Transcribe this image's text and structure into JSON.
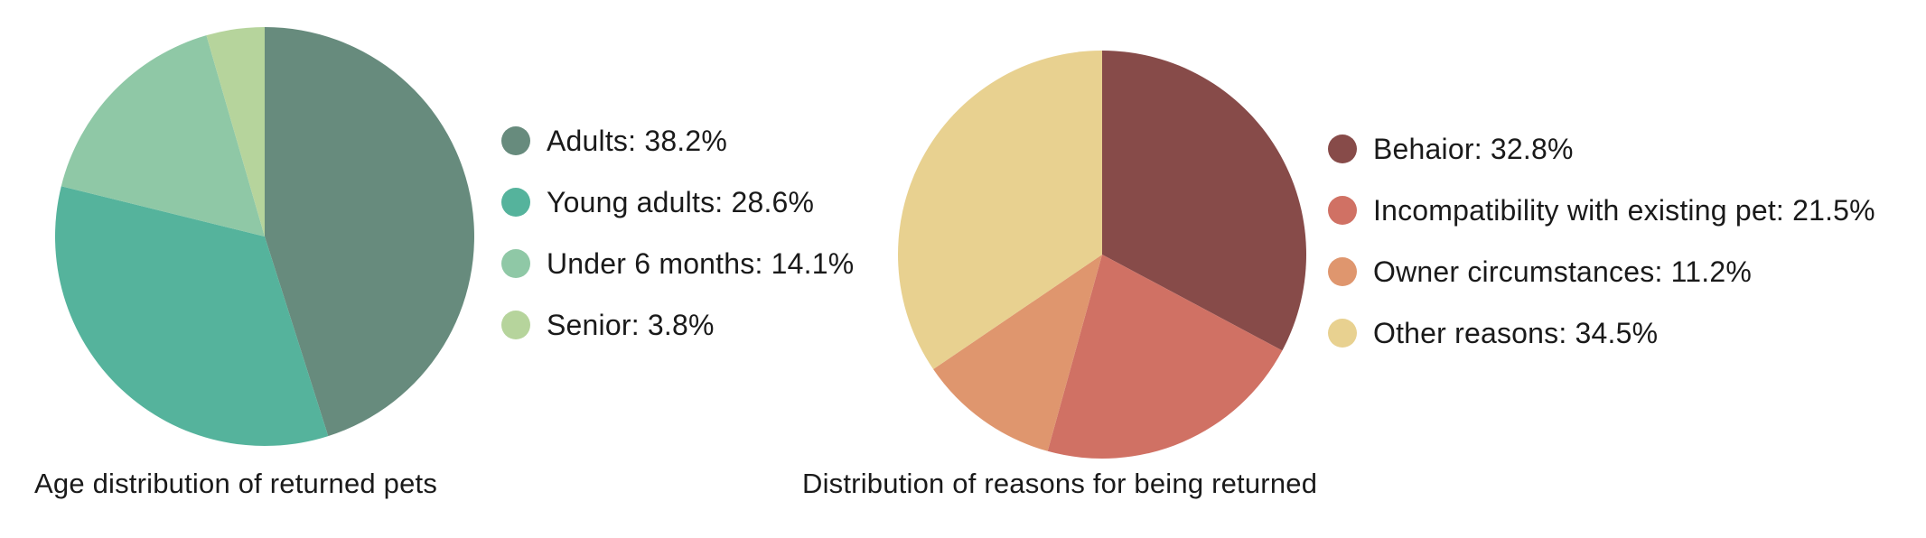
{
  "chart_data": [
    {
      "type": "pie",
      "title": "Age distribution of returned pets",
      "slices": [
        {
          "label": "Adults",
          "value": 38.2,
          "color": "#678b7d"
        },
        {
          "label": "Young adults",
          "value": 28.6,
          "color": "#55b39c"
        },
        {
          "label": "Under 6 months",
          "value": 14.1,
          "color": "#8fc8a6"
        },
        {
          "label": "Senior",
          "value": 3.8,
          "color": "#b6d49c"
        }
      ],
      "legend": [
        {
          "text": "Adults: 38.2%",
          "color": "#678b7d"
        },
        {
          "text": "Young adults: 28.6%",
          "color": "#55b39c"
        },
        {
          "text": "Under 6 months: 14.1%",
          "color": "#8fc8a6"
        },
        {
          "text": "Senior: 3.8%",
          "color": "#b6d49c"
        }
      ],
      "legend_placement": "right"
    },
    {
      "type": "pie",
      "title": "Distribution of reasons for being returned",
      "slices": [
        {
          "label": "Behaior",
          "value": 32.8,
          "color": "#874b49"
        },
        {
          "label": "Incompatibility with existing pet",
          "value": 21.5,
          "color": "#d07164"
        },
        {
          "label": "Owner circumstances",
          "value": 11.2,
          "color": "#df966e"
        },
        {
          "label": "Other reasons",
          "value": 34.5,
          "color": "#e8d190"
        }
      ],
      "legend": [
        {
          "text": "Behaior: 32.8%",
          "color": "#874b49"
        },
        {
          "text": "Incompatibility with existing pet: 21.5%",
          "color": "#d07164"
        },
        {
          "text": "Owner circumstances: 11.2%",
          "color": "#df966e"
        },
        {
          "text": "Other reasons: 34.5%",
          "color": "#e8d190"
        }
      ],
      "legend_placement": "right"
    }
  ]
}
